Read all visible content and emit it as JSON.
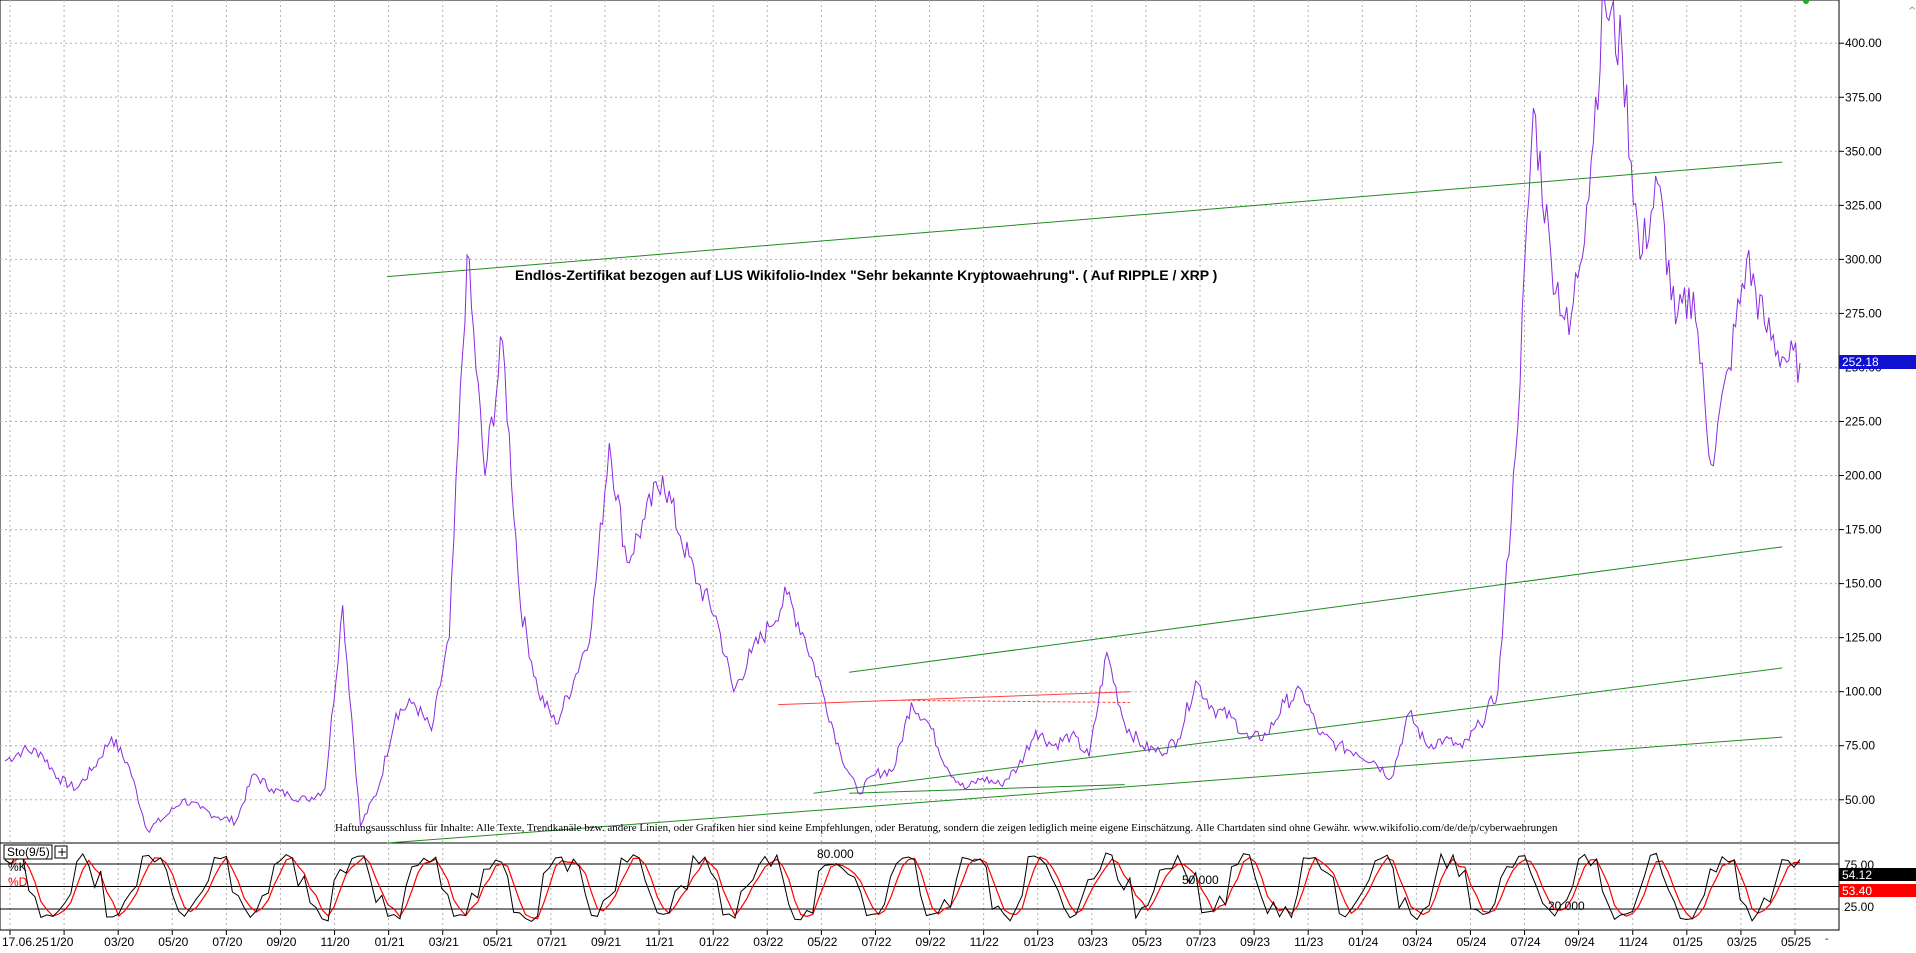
{
  "chart_data": [
    {
      "type": "line",
      "title": "Endlos-Zertifikat bezogen auf LUS Wikifolio-Index \"Sehr bekannte Kryptowaehrung\". ( Auf RIPPLE / XRP )",
      "disclaimer": "Haftungsausschluss für Inhalte: Alle Texte, Trendkanäle bzw. andere Linien, oder Grafiken hier sind keine Empfehlungen, oder Beratung, sondern die zeigen lediglich meine eigene Einschätzung. Alle Chartdaten sind ohne Gewähr. www.wikifolio.com/de/de/p/cyberwaehrungen",
      "x_ticks": [
        "17.06.25",
        "1/20",
        "03/20",
        "05/20",
        "07/20",
        "09/20",
        "11/20",
        "01/21",
        "03/21",
        "05/21",
        "07/21",
        "09/21",
        "11/21",
        "01/22",
        "03/22",
        "05/22",
        "07/22",
        "09/22",
        "11/22",
        "01/23",
        "03/23",
        "05/23",
        "07/23",
        "09/23",
        "11/23",
        "01/24",
        "03/24",
        "05/24",
        "07/24",
        "09/24",
        "11/24",
        "01/25",
        "03/25",
        "05/25"
      ],
      "y_ticks": [
        "50.00",
        "75.00",
        "100.00",
        "125.00",
        "150.00",
        "175.00",
        "200.00",
        "225.00",
        "250.00",
        "275.00",
        "300.00",
        "325.00",
        "350.00",
        "375.00",
        "400.00"
      ],
      "ylim": [
        30,
        420
      ],
      "grid": true,
      "last_value_label": "252.18",
      "series": [
        {
          "color": "#8a2be2",
          "points": [
            [
              0,
              68
            ],
            [
              1,
              73
            ],
            [
              2,
              72
            ],
            [
              3,
              60
            ],
            [
              4,
              55
            ],
            [
              5,
              65
            ],
            [
              6,
              79
            ],
            [
              7,
              65
            ],
            [
              8,
              36
            ],
            [
              9,
              42
            ],
            [
              10,
              50
            ],
            [
              11,
              46
            ],
            [
              12,
              42
            ],
            [
              13,
              40
            ],
            [
              14,
              62
            ],
            [
              15,
              55
            ],
            [
              16,
              52
            ],
            [
              17,
              50
            ],
            [
              18,
              55
            ],
            [
              19,
              140
            ],
            [
              20,
              38
            ],
            [
              21,
              55
            ],
            [
              22,
              90
            ],
            [
              23,
              95
            ],
            [
              24,
              82
            ],
            [
              25,
              125
            ],
            [
              26,
              302
            ],
            [
              27,
              200
            ],
            [
              28,
              262
            ],
            [
              29,
              140
            ],
            [
              30,
              100
            ],
            [
              31,
              85
            ],
            [
              32,
              105
            ],
            [
              33,
              130
            ],
            [
              34,
              215
            ],
            [
              35,
              160
            ],
            [
              36,
              180
            ],
            [
              37,
              200
            ],
            [
              38,
              172
            ],
            [
              39,
              150
            ],
            [
              40,
              135
            ],
            [
              41,
              100
            ],
            [
              42,
              118
            ],
            [
              43,
              130
            ],
            [
              44,
              145
            ],
            [
              45,
              125
            ],
            [
              46,
              100
            ],
            [
              47,
              72
            ],
            [
              48,
              53
            ],
            [
              49,
              62
            ],
            [
              50,
              64
            ],
            [
              51,
              95
            ],
            [
              52,
              85
            ],
            [
              53,
              65
            ],
            [
              54,
              55
            ],
            [
              55,
              60
            ],
            [
              56,
              57
            ],
            [
              57,
              65
            ],
            [
              58,
              82
            ],
            [
              59,
              75
            ],
            [
              60,
              80
            ],
            [
              61,
              70
            ],
            [
              62,
              118
            ],
            [
              63,
              85
            ],
            [
              64,
              75
            ],
            [
              65,
              72
            ],
            [
              66,
              78
            ],
            [
              67,
              105
            ],
            [
              68,
              92
            ],
            [
              69,
              88
            ],
            [
              70,
              78
            ],
            [
              71,
              80
            ],
            [
              72,
              95
            ],
            [
              73,
              100
            ],
            [
              74,
              80
            ],
            [
              75,
              75
            ],
            [
              76,
              72
            ],
            [
              77,
              68
            ],
            [
              78,
              60
            ],
            [
              79,
              90
            ],
            [
              80,
              75
            ],
            [
              81,
              78
            ],
            [
              82,
              74
            ],
            [
              83,
              85
            ],
            [
              84,
              100
            ],
            [
              85,
              210
            ],
            [
              86,
              370
            ],
            [
              87,
              300
            ],
            [
              88,
              265
            ],
            [
              89,
              325
            ],
            [
              90,
              420
            ],
            [
              91,
              395
            ],
            [
              92,
              300
            ],
            [
              93,
              335
            ],
            [
              94,
              270
            ],
            [
              95,
              285
            ],
            [
              96,
              205
            ],
            [
              97,
              250
            ],
            [
              98,
              300
            ],
            [
              99,
              270
            ],
            [
              100,
              255
            ],
            [
              101,
              252
            ]
          ]
        }
      ],
      "trendlines_color": "#228b22",
      "trendlines_alt_color": "#ff4040"
    },
    {
      "type": "line",
      "indicator_label": "Sto(9/5)",
      "k_label": "%K",
      "d_label": "%D",
      "levels": [
        "80.000",
        "50.000",
        "20.000"
      ],
      "y_ticks": [
        "75.00",
        "25.00"
      ],
      "ylim": [
        0,
        100
      ],
      "k_value_label": "54.12",
      "d_value_label": "53.40",
      "k_color": "#000000",
      "d_color": "#ff0000"
    }
  ]
}
